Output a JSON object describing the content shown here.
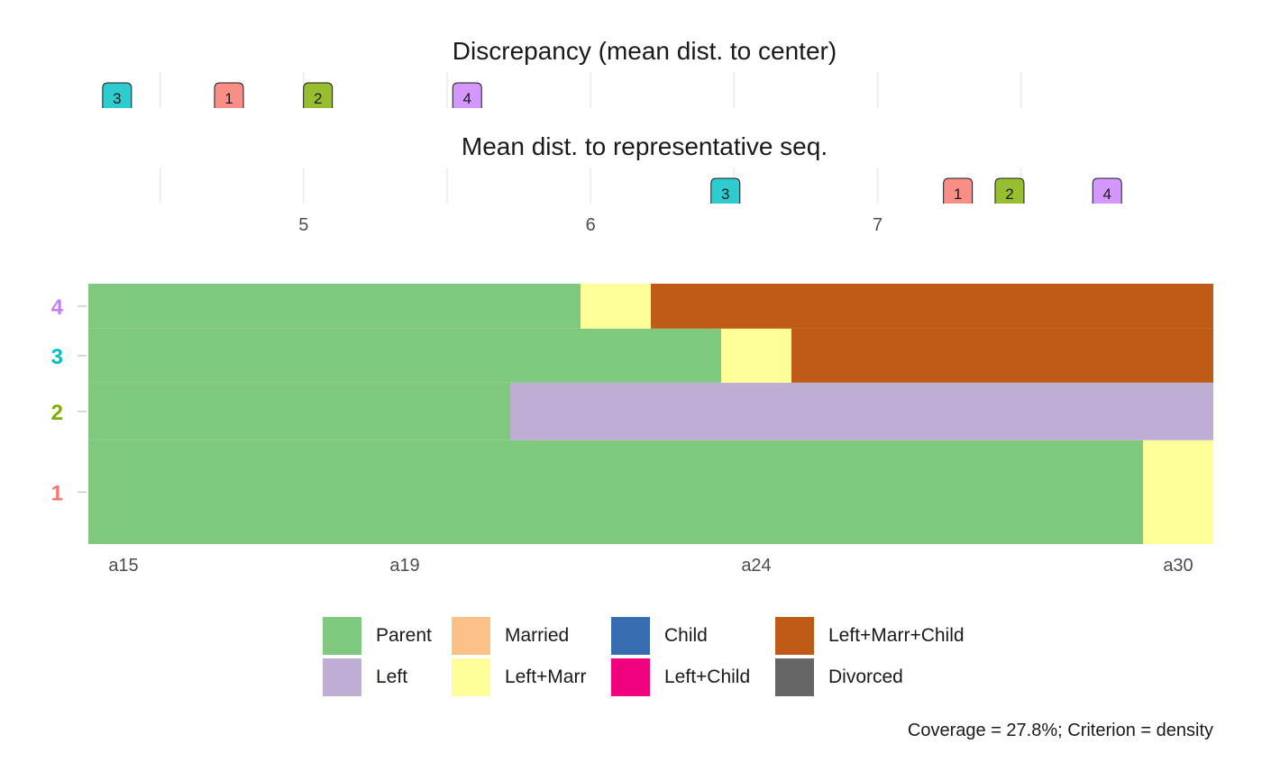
{
  "chart_data": [
    {
      "type": "scatter",
      "title": "Discrepancy (mean dist. to center)",
      "points": [
        {
          "group": "3",
          "value": 4.35
        },
        {
          "group": "1",
          "value": 4.74
        },
        {
          "group": "2",
          "value": 5.05
        },
        {
          "group": "4",
          "value": 5.57
        }
      ],
      "xlim": [
        4.25,
        8.17
      ],
      "xticks": [
        4.5,
        5,
        5.5,
        6,
        6.5,
        7,
        7.5
      ],
      "tick_labels": {
        "5": "5",
        "6": "6",
        "7": "7"
      },
      "grid": true
    },
    {
      "type": "scatter",
      "title": "Mean dist. to representative seq.",
      "points": [
        {
          "group": "3",
          "value": 6.47
        },
        {
          "group": "1",
          "value": 7.28
        },
        {
          "group": "2",
          "value": 7.46
        },
        {
          "group": "4",
          "value": 7.8
        }
      ],
      "xlim": [
        4.25,
        8.17
      ],
      "xticks": [
        4.5,
        5,
        5.5,
        6,
        6.5,
        7,
        7.5
      ],
      "tick_labels": [
        "5",
        "6",
        "7"
      ],
      "grid": true
    },
    {
      "type": "bar",
      "subtype": "sequence-index",
      "x_labels": [
        "a15",
        "a19",
        "a24",
        "a30"
      ],
      "x_label_positions": [
        15,
        19,
        24,
        30
      ],
      "xlim": [
        14.5,
        30.5
      ],
      "y_categories": [
        "1",
        "2",
        "3",
        "4"
      ],
      "sequences": [
        {
          "name": "1",
          "row_span": [
            0,
            1.48
          ],
          "segments": [
            {
              "state": "Parent",
              "from": 15,
              "to": 29
            },
            {
              "state": "Left+Marr",
              "from": 30,
              "to": 30
            }
          ]
        },
        {
          "name": "2",
          "row_span": [
            1.48,
            2.3
          ],
          "segments": [
            {
              "state": "Parent",
              "from": 15,
              "to": 20
            },
            {
              "state": "Left",
              "from": 21,
              "to": 30
            }
          ]
        },
        {
          "name": "3",
          "row_span": [
            2.3,
            3.07
          ],
          "segments": [
            {
              "state": "Parent",
              "from": 15,
              "to": 23
            },
            {
              "state": "Left+Marr",
              "from": 24,
              "to": 24
            },
            {
              "state": "Left+Marr+Child",
              "from": 25,
              "to": 30
            }
          ]
        },
        {
          "name": "4",
          "row_span": [
            3.07,
            3.71
          ],
          "segments": [
            {
              "state": "Parent",
              "from": 15,
              "to": 21
            },
            {
              "state": "Left+Marr",
              "from": 22,
              "to": 22
            },
            {
              "state": "Left+Marr+Child",
              "from": 23,
              "to": 30
            }
          ]
        }
      ],
      "caption": "Coverage = 27.8%; Criterion = density"
    }
  ],
  "group_colors": {
    "1": "#F8766D",
    "2": "#7CAE00",
    "3": "#00BFC4",
    "4": "#C77CFF"
  },
  "label_fills": {
    "1": "#F98E86",
    "2": "#97BE2E",
    "3": "#2ECCCF",
    "4": "#D397FF"
  },
  "legend": [
    {
      "label": "Parent",
      "color": "#7FC97F"
    },
    {
      "label": "Left",
      "color": "#BEAED4"
    },
    {
      "label": "Married",
      "color": "#FDC086"
    },
    {
      "label": "Left+Marr",
      "color": "#FFFF99"
    },
    {
      "label": "Child",
      "color": "#386CB0"
    },
    {
      "label": "Left+Child",
      "color": "#F0027F"
    },
    {
      "label": "Left+Marr+Child",
      "color": "#BF5B17"
    },
    {
      "label": "Divorced",
      "color": "#666666"
    }
  ]
}
